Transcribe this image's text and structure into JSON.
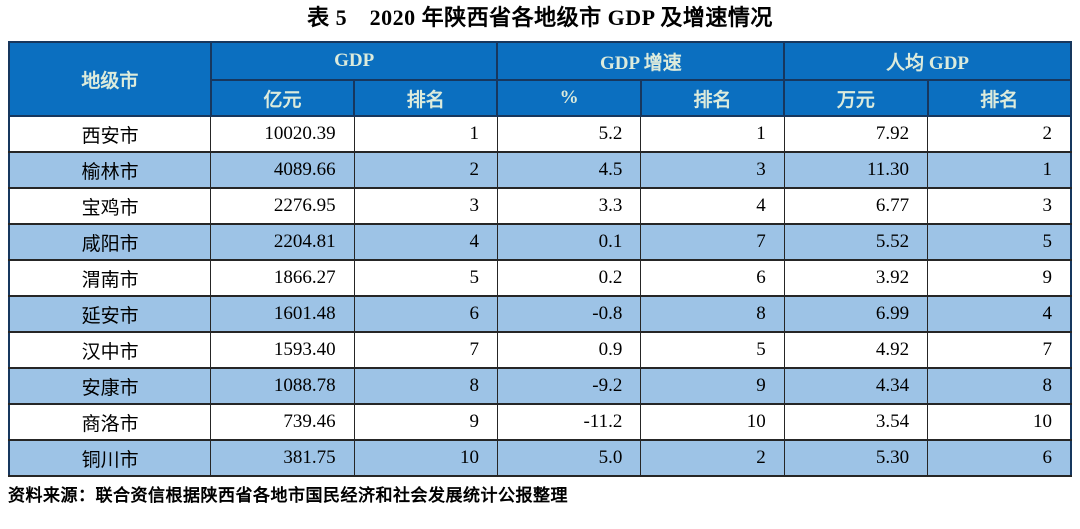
{
  "title": "表 5　2020 年陕西省各地级市 GDP 及增速情况",
  "source_note": "资料来源：联合资信根据陕西省各地市国民经济和社会发展统计公报整理",
  "colors": {
    "header_bg": "#0B6FC0",
    "header_text": "#DCEBDC",
    "row_alt_bg": "#9DC3E6",
    "row_bg": "#FFFFFF",
    "header_border": "#17375E",
    "body_border": "#262626"
  },
  "table": {
    "header": {
      "city": "地级市",
      "group_gdp": "GDP",
      "group_growth": "GDP 增速",
      "group_percap": "人均 GDP",
      "sub_gdp_unit": "亿元",
      "sub_gdp_rank": "排名",
      "sub_growth_unit": "%",
      "sub_growth_rank": "排名",
      "sub_percap_unit": "万元",
      "sub_percap_rank": "排名"
    },
    "rows": [
      {
        "city": "西安市",
        "gdp": "10020.39",
        "gdp_rank": "1",
        "growth": "5.2",
        "growth_rank": "1",
        "percap": "7.92",
        "percap_rank": "2"
      },
      {
        "city": "榆林市",
        "gdp": "4089.66",
        "gdp_rank": "2",
        "growth": "4.5",
        "growth_rank": "3",
        "percap": "11.30",
        "percap_rank": "1"
      },
      {
        "city": "宝鸡市",
        "gdp": "2276.95",
        "gdp_rank": "3",
        "growth": "3.3",
        "growth_rank": "4",
        "percap": "6.77",
        "percap_rank": "3"
      },
      {
        "city": "咸阳市",
        "gdp": "2204.81",
        "gdp_rank": "4",
        "growth": "0.1",
        "growth_rank": "7",
        "percap": "5.52",
        "percap_rank": "5"
      },
      {
        "city": "渭南市",
        "gdp": "1866.27",
        "gdp_rank": "5",
        "growth": "0.2",
        "growth_rank": "6",
        "percap": "3.92",
        "percap_rank": "9"
      },
      {
        "city": "延安市",
        "gdp": "1601.48",
        "gdp_rank": "6",
        "growth": "-0.8",
        "growth_rank": "8",
        "percap": "6.99",
        "percap_rank": "4"
      },
      {
        "city": "汉中市",
        "gdp": "1593.40",
        "gdp_rank": "7",
        "growth": "0.9",
        "growth_rank": "5",
        "percap": "4.92",
        "percap_rank": "7"
      },
      {
        "city": "安康市",
        "gdp": "1088.78",
        "gdp_rank": "8",
        "growth": "-9.2",
        "growth_rank": "9",
        "percap": "4.34",
        "percap_rank": "8"
      },
      {
        "city": "商洛市",
        "gdp": "739.46",
        "gdp_rank": "9",
        "growth": "-11.2",
        "growth_rank": "10",
        "percap": "3.54",
        "percap_rank": "10"
      },
      {
        "city": "铜川市",
        "gdp": "381.75",
        "gdp_rank": "10",
        "growth": "5.0",
        "growth_rank": "2",
        "percap": "5.30",
        "percap_rank": "6"
      }
    ]
  },
  "chart_data": {
    "type": "table",
    "title": "表 5　2020 年陕西省各地级市 GDP 及增速情况",
    "columns": [
      "地级市",
      "GDP 亿元",
      "GDP 排名",
      "GDP增速 %",
      "GDP增速 排名",
      "人均GDP 万元",
      "人均GDP 排名"
    ],
    "rows": [
      [
        "西安市",
        10020.39,
        1,
        5.2,
        1,
        7.92,
        2
      ],
      [
        "榆林市",
        4089.66,
        2,
        4.5,
        3,
        11.3,
        1
      ],
      [
        "宝鸡市",
        2276.95,
        3,
        3.3,
        4,
        6.77,
        3
      ],
      [
        "咸阳市",
        2204.81,
        4,
        0.1,
        7,
        5.52,
        5
      ],
      [
        "渭南市",
        1866.27,
        5,
        0.2,
        6,
        3.92,
        9
      ],
      [
        "延安市",
        1601.48,
        6,
        -0.8,
        8,
        6.99,
        4
      ],
      [
        "汉中市",
        1593.4,
        7,
        0.9,
        5,
        4.92,
        7
      ],
      [
        "安康市",
        1088.78,
        8,
        -9.2,
        9,
        4.34,
        8
      ],
      [
        "商洛市",
        739.46,
        9,
        -11.2,
        10,
        3.54,
        10
      ],
      [
        "铜川市",
        381.75,
        10,
        5.0,
        2,
        5.3,
        6
      ]
    ]
  }
}
